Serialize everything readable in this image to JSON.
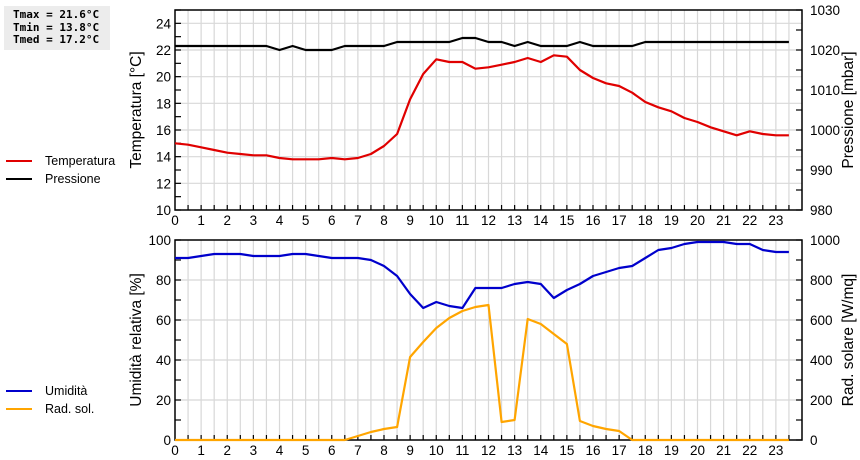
{
  "stats": {
    "tmax": "Tmax = 21.6°C",
    "tmin": "Tmin = 13.8°C",
    "tmed": "Tmed = 17.2°C"
  },
  "legend_top": [
    {
      "label": "Temperatura",
      "color": "#e00000"
    },
    {
      "label": "Pressione",
      "color": "#000000"
    }
  ],
  "legend_bottom": [
    {
      "label": "Umidità",
      "color": "#0000cc"
    },
    {
      "label": "Rad. sol.",
      "color": "#ffa500"
    }
  ],
  "chart_data": [
    {
      "type": "line",
      "title": "",
      "xlabel": "",
      "ylabel": "Temperatura [°C]",
      "y2label": "Pressione [mbar]",
      "ylim": [
        10,
        25
      ],
      "y2lim": [
        980,
        1030
      ],
      "yticks": [
        10,
        12,
        14,
        16,
        18,
        20,
        22,
        24
      ],
      "y2ticks": [
        980,
        990,
        1000,
        1010,
        1020,
        1030
      ],
      "xticks": [
        0,
        1,
        2,
        3,
        4,
        5,
        6,
        7,
        8,
        9,
        10,
        11,
        12,
        13,
        14,
        15,
        16,
        17,
        18,
        19,
        20,
        21,
        22,
        23
      ],
      "grid": true,
      "legend_position": "left",
      "x": [
        0,
        0.5,
        1,
        1.5,
        2,
        2.5,
        3,
        3.5,
        4,
        4.5,
        5,
        5.5,
        6,
        6.5,
        7,
        7.5,
        8,
        8.5,
        9,
        9.5,
        10,
        10.5,
        11,
        11.5,
        12,
        12.5,
        13,
        13.5,
        14,
        14.5,
        15,
        15.5,
        16,
        16.5,
        17,
        17.5,
        18,
        18.5,
        19,
        19.5,
        20,
        20.5,
        21,
        21.5,
        22,
        22.5,
        23,
        23.5
      ],
      "series": [
        {
          "name": "Temperatura",
          "axis": "left",
          "color": "#e00000",
          "values": [
            15.0,
            14.9,
            14.7,
            14.5,
            14.3,
            14.2,
            14.1,
            14.1,
            13.9,
            13.8,
            13.8,
            13.8,
            13.9,
            13.8,
            13.9,
            14.2,
            14.8,
            15.7,
            18.3,
            20.2,
            21.3,
            21.1,
            21.1,
            20.6,
            20.7,
            20.9,
            21.1,
            21.4,
            21.1,
            21.6,
            21.5,
            20.5,
            19.9,
            19.5,
            19.3,
            18.8,
            18.1,
            17.7,
            17.4,
            16.9,
            16.6,
            16.2,
            15.9,
            15.6,
            15.9,
            15.7,
            15.6,
            15.6
          ]
        },
        {
          "name": "Pressione",
          "axis": "right",
          "color": "#000000",
          "values": [
            1021,
            1021,
            1021,
            1021,
            1021,
            1021,
            1021,
            1021,
            1020,
            1021,
            1020,
            1020,
            1020,
            1021,
            1021,
            1021,
            1021,
            1022,
            1022,
            1022,
            1022,
            1022,
            1023,
            1023,
            1022,
            1022,
            1021,
            1022,
            1021,
            1021,
            1021,
            1022,
            1021,
            1021,
            1021,
            1021,
            1022,
            1022,
            1022,
            1022,
            1022,
            1022,
            1022,
            1022,
            1022,
            1022,
            1022,
            1022
          ]
        }
      ]
    },
    {
      "type": "line",
      "title": "",
      "xlabel": "",
      "ylabel": "Umidità relativa [%]",
      "y2label": "Rad. solare [W/mq]",
      "ylim": [
        0,
        100
      ],
      "y2lim": [
        0,
        1000
      ],
      "yticks": [
        0,
        20,
        40,
        60,
        80,
        100
      ],
      "y2ticks": [
        0,
        200,
        400,
        600,
        800,
        1000
      ],
      "xticks": [
        0,
        1,
        2,
        3,
        4,
        5,
        6,
        7,
        8,
        9,
        10,
        11,
        12,
        13,
        14,
        15,
        16,
        17,
        18,
        19,
        20,
        21,
        22,
        23
      ],
      "grid": true,
      "legend_position": "left",
      "x": [
        0,
        0.5,
        1,
        1.5,
        2,
        2.5,
        3,
        3.5,
        4,
        4.5,
        5,
        5.5,
        6,
        6.5,
        7,
        7.5,
        8,
        8.5,
        9,
        9.5,
        10,
        10.5,
        11,
        11.5,
        12,
        12.5,
        13,
        13.5,
        14,
        14.5,
        15,
        15.5,
        16,
        16.5,
        17,
        17.5,
        18,
        18.5,
        19,
        19.5,
        20,
        20.5,
        21,
        21.5,
        22,
        22.5,
        23,
        23.5
      ],
      "series": [
        {
          "name": "Umidità",
          "axis": "left",
          "color": "#0000cc",
          "values": [
            91,
            91,
            92,
            93,
            93,
            93,
            92,
            92,
            92,
            93,
            93,
            92,
            91,
            91,
            91,
            90,
            87,
            82,
            73,
            66,
            69,
            67,
            66,
            76,
            76,
            76,
            78,
            79,
            78,
            71,
            75,
            78,
            82,
            84,
            86,
            87,
            91,
            95,
            96,
            98,
            99,
            99,
            99,
            98,
            98,
            95,
            94,
            94
          ]
        },
        {
          "name": "Rad. sol.",
          "axis": "right",
          "color": "#ffa500",
          "values": [
            0,
            0,
            0,
            0,
            0,
            0,
            0,
            0,
            0,
            0,
            0,
            0,
            0,
            0,
            20,
            40,
            55,
            65,
            415,
            490,
            560,
            610,
            645,
            665,
            675,
            90,
            100,
            605,
            580,
            530,
            480,
            95,
            70,
            55,
            45,
            0,
            0,
            0,
            0,
            0,
            0,
            0,
            0,
            0,
            0,
            0,
            0,
            0
          ]
        }
      ]
    }
  ]
}
